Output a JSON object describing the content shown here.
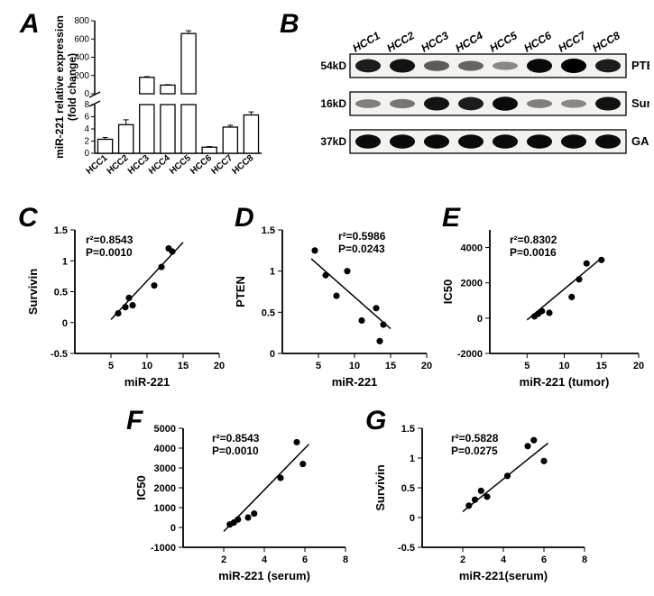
{
  "panel_A": {
    "label": "A",
    "type": "bar",
    "ylabel": "miR-221 relative expression\n(fold change)",
    "ylabel_fontsize": 12,
    "categories": [
      "HCC1",
      "HCC2",
      "HCC3",
      "HCC4",
      "HCC5",
      "HCC6",
      "HCC7",
      "HCC8"
    ],
    "values": [
      2.3,
      4.7,
      180,
      95,
      660,
      1.0,
      4.3,
      6.3
    ],
    "errors": [
      0.3,
      0.8,
      8,
      5,
      30,
      0.1,
      0.3,
      0.5
    ],
    "bar_color": "#ffffff",
    "bar_border": "#000000",
    "background": "#ffffff",
    "axis_break": true,
    "lower_ylim": [
      0,
      8
    ],
    "lower_ticks": [
      0,
      2,
      4,
      6,
      8
    ],
    "upper_ylim": [
      0,
      800
    ],
    "upper_ticks": [
      0,
      200,
      400,
      600,
      800
    ],
    "bar_width": 0.7,
    "label_fontsize": 10
  },
  "panel_B": {
    "label": "B",
    "type": "western_blot",
    "lanes": [
      "HCC1",
      "HCC2",
      "HCC3",
      "HCC4",
      "HCC5",
      "HCC6",
      "HCC7",
      "HCC8"
    ],
    "rows": [
      {
        "mw": "54kD",
        "name": "PTEN",
        "intensities": [
          0.85,
          0.9,
          0.5,
          0.45,
          0.25,
          0.95,
          1.0,
          0.85
        ]
      },
      {
        "mw": "16kD",
        "name": "Survivin",
        "intensities": [
          0.3,
          0.35,
          0.9,
          0.85,
          0.95,
          0.3,
          0.25,
          0.9
        ]
      },
      {
        "mw": "37kD",
        "name": "GAPDH",
        "intensities": [
          0.95,
          0.95,
          0.95,
          0.95,
          0.95,
          0.95,
          0.95,
          0.95
        ]
      }
    ],
    "lane_fontsize": 12,
    "mw_fontsize": 12,
    "name_fontsize": 13
  },
  "scatter_common": {
    "marker": "circle",
    "marker_size": 5,
    "marker_color": "#000000",
    "line_color": "#000000",
    "line_width": 1.5,
    "axis_fontsize": 13,
    "stat_fontsize": 12,
    "tick_fontsize": 11
  },
  "panel_C": {
    "label": "C",
    "type": "scatter",
    "xlabel": "miR-221",
    "ylabel": "Survivin",
    "r2_text": "r²=0.8543",
    "p_text": "P=0.0010",
    "xlim": [
      0,
      20
    ],
    "ylim": [
      -0.5,
      1.5
    ],
    "xticks": [
      5,
      10,
      15,
      20
    ],
    "yticks": [
      -0.5,
      0.0,
      0.5,
      1.0,
      1.5
    ],
    "points": [
      [
        6,
        0.15
      ],
      [
        7,
        0.25
      ],
      [
        7.5,
        0.4
      ],
      [
        8,
        0.28
      ],
      [
        11,
        0.6
      ],
      [
        12,
        0.9
      ],
      [
        13,
        1.2
      ],
      [
        13.5,
        1.15
      ]
    ],
    "line": {
      "x1": 5,
      "y1": 0.05,
      "x2": 15,
      "y2": 1.3
    }
  },
  "panel_D": {
    "label": "D",
    "type": "scatter",
    "xlabel": "miR-221",
    "ylabel": "PTEN",
    "r2_text": "r²=0.5986",
    "p_text": "P=0.0243",
    "xlim": [
      0,
      20
    ],
    "ylim": [
      0.0,
      1.5
    ],
    "xticks": [
      5,
      10,
      15,
      20
    ],
    "yticks": [
      0.0,
      0.5,
      1.0,
      1.5
    ],
    "points": [
      [
        4.5,
        1.25
      ],
      [
        6,
        0.95
      ],
      [
        7.5,
        0.7
      ],
      [
        9,
        1.0
      ],
      [
        11,
        0.4
      ],
      [
        13,
        0.55
      ],
      [
        13.5,
        0.15
      ],
      [
        14,
        0.35
      ]
    ],
    "line": {
      "x1": 4,
      "y1": 1.15,
      "x2": 15,
      "y2": 0.3
    }
  },
  "panel_E": {
    "label": "E",
    "type": "scatter",
    "xlabel": "miR-221 (tumor)",
    "ylabel": "IC50",
    "r2_text": "r²=0.8302",
    "p_text": "P=0.0016",
    "xlim": [
      0,
      20
    ],
    "ylim": [
      -2000,
      5000
    ],
    "xticks": [
      5,
      10,
      15,
      20
    ],
    "yticks": [
      -2000,
      0,
      2000,
      4000
    ],
    "points": [
      [
        6,
        100
      ],
      [
        6.5,
        250
      ],
      [
        7,
        400
      ],
      [
        8,
        300
      ],
      [
        11,
        1200
      ],
      [
        12,
        2200
      ],
      [
        13,
        3100
      ],
      [
        15,
        3300
      ]
    ],
    "line": {
      "x1": 5,
      "y1": -100,
      "x2": 15,
      "y2": 3400
    }
  },
  "panel_F": {
    "label": "F",
    "type": "scatter",
    "xlabel": "miR-221 (serum)",
    "ylabel": "IC50",
    "r2_text": "r²=0.8543",
    "p_text": "P=0.0010",
    "xlim": [
      0,
      8
    ],
    "ylim": [
      -1000,
      5000
    ],
    "xticks": [
      2,
      4,
      6,
      8
    ],
    "yticks": [
      -1000,
      0,
      1000,
      2000,
      3000,
      4000,
      5000
    ],
    "points": [
      [
        2.3,
        150
      ],
      [
        2.5,
        250
      ],
      [
        2.7,
        400
      ],
      [
        3.2,
        500
      ],
      [
        3.5,
        700
      ],
      [
        4.8,
        2500
      ],
      [
        5.6,
        4300
      ],
      [
        5.9,
        3200
      ]
    ],
    "line": {
      "x1": 2,
      "y1": -200,
      "x2": 6.2,
      "y2": 4200
    }
  },
  "panel_G": {
    "label": "G",
    "type": "scatter",
    "xlabel": "miR-221(serum)",
    "ylabel": "Survivin",
    "r2_text": "r²=0.5828",
    "p_text": "P=0.0275",
    "xlim": [
      0,
      8
    ],
    "ylim": [
      -0.5,
      1.5
    ],
    "xticks": [
      2,
      4,
      6,
      8
    ],
    "yticks": [
      -0.5,
      0.0,
      0.5,
      1.0,
      1.5
    ],
    "points": [
      [
        2.3,
        0.2
      ],
      [
        2.6,
        0.3
      ],
      [
        2.9,
        0.45
      ],
      [
        3.2,
        0.35
      ],
      [
        4.2,
        0.7
      ],
      [
        5.2,
        1.2
      ],
      [
        5.5,
        1.3
      ],
      [
        6.0,
        0.95
      ]
    ],
    "line": {
      "x1": 2,
      "y1": 0.1,
      "x2": 6.2,
      "y2": 1.25
    }
  }
}
